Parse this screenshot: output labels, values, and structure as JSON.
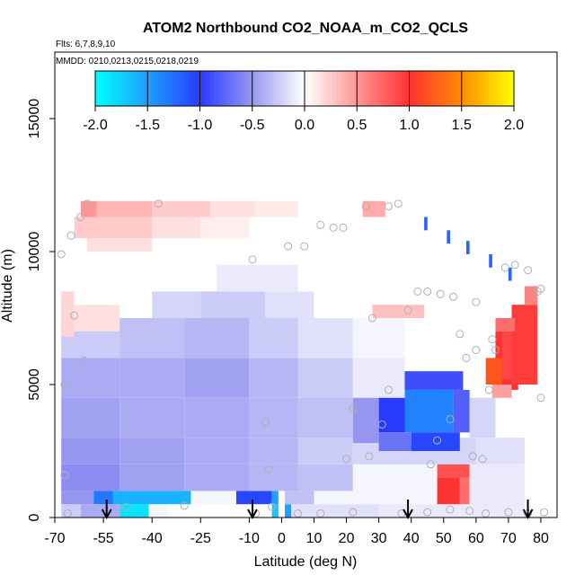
{
  "chart_data": {
    "type": "heatmap",
    "title": "ATOM2 Northbound CO2_NOAA_m_CO2_QCLS",
    "flights_label": "Flts: 6,7,8,9,10",
    "dates_label": "MMDD: 0210,0213,0215,0218,0219",
    "xlabel": "Latitude (deg N)",
    "ylabel": "Altitude (m)",
    "xlim": [
      -70,
      85
    ],
    "ylim": [
      0,
      17500
    ],
    "xticks": [
      -70,
      -55,
      -40,
      -25,
      -10,
      0,
      10,
      20,
      30,
      40,
      50,
      60,
      70,
      80
    ],
    "xtick_labels": [
      "-70",
      "-55",
      "-40",
      "-25",
      "-10",
      "0",
      "10",
      "20",
      "30",
      "40",
      "50",
      "60",
      "70",
      "80"
    ],
    "yticks": [
      0,
      5000,
      10000,
      15000
    ],
    "ytick_labels": [
      "0",
      "5000",
      "10000",
      "15000"
    ],
    "colorbar": {
      "range": [
        -2.0,
        2.0
      ],
      "ticks": [
        -2.0,
        -1.5,
        -1.0,
        -0.5,
        0.0,
        0.5,
        1.0,
        1.5,
        2.0
      ],
      "tick_labels": [
        "-2.0",
        "-1.5",
        "-1.0",
        "-0.5",
        "0.0",
        "0.5",
        "1.0",
        "1.5",
        "2.0"
      ]
    },
    "cells": [
      {
        "lat0": -68,
        "lat1": -62,
        "alt0": 0,
        "alt1": 500,
        "v": -0.25
      },
      {
        "lat0": -62,
        "lat1": -50,
        "alt0": 0,
        "alt1": 500,
        "v": -0.4
      },
      {
        "lat0": -50,
        "lat1": -41,
        "alt0": 0,
        "alt1": 500,
        "v": -1.85
      },
      {
        "lat0": -41,
        "lat1": -35,
        "alt0": 0,
        "alt1": 500,
        "v": -0.05
      },
      {
        "lat0": -35,
        "lat1": -3,
        "alt0": 0,
        "alt1": 500,
        "v": 0.0
      },
      {
        "lat0": -3,
        "lat1": -1,
        "alt0": 0,
        "alt1": 500,
        "v": -1.7
      },
      {
        "lat0": 1,
        "lat1": 3,
        "alt0": 0,
        "alt1": 500,
        "v": -1.5
      },
      {
        "lat0": 3,
        "lat1": 30,
        "alt0": 0,
        "alt1": 500,
        "v": -0.15
      },
      {
        "lat0": 30,
        "lat1": 75,
        "alt0": 0,
        "alt1": 500,
        "v": -0.1
      },
      {
        "lat0": -68,
        "lat1": -58,
        "alt0": 500,
        "alt1": 1000,
        "v": -0.5
      },
      {
        "lat0": -58,
        "lat1": -52,
        "alt0": 500,
        "alt1": 1000,
        "v": -1.3
      },
      {
        "lat0": -52,
        "lat1": -28,
        "alt0": 500,
        "alt1": 1000,
        "v": -1.6
      },
      {
        "lat0": -28,
        "lat1": -14,
        "alt0": 500,
        "alt1": 1000,
        "v": -0.05
      },
      {
        "lat0": -14,
        "lat1": -3,
        "alt0": 500,
        "alt1": 1000,
        "v": -1.05
      },
      {
        "lat0": -3,
        "lat1": -1,
        "alt0": 500,
        "alt1": 1000,
        "v": -1.5
      },
      {
        "lat0": 1,
        "lat1": 10,
        "alt0": 500,
        "alt1": 1000,
        "v": -0.3
      },
      {
        "lat0": 10,
        "lat1": 48,
        "alt0": 500,
        "alt1": 1000,
        "v": -0.05
      },
      {
        "lat0": 48,
        "lat1": 55,
        "alt0": 500,
        "alt1": 1500,
        "v": 1.0
      },
      {
        "lat0": 55,
        "lat1": 58,
        "alt0": 500,
        "alt1": 1500,
        "v": 0.7
      },
      {
        "lat0": 48,
        "lat1": 58,
        "alt0": 1500,
        "alt1": 2000,
        "v": 0.85
      },
      {
        "lat0": 58,
        "lat1": 75,
        "alt0": 500,
        "alt1": 2000,
        "v": -0.1
      },
      {
        "lat0": -68,
        "lat1": -50,
        "alt0": 1000,
        "alt1": 2000,
        "v": -0.55
      },
      {
        "lat0": -50,
        "lat1": -30,
        "alt0": 1000,
        "alt1": 2000,
        "v": -0.45
      },
      {
        "lat0": -30,
        "lat1": -10,
        "alt0": 1000,
        "alt1": 2000,
        "v": -0.4
      },
      {
        "lat0": -10,
        "lat1": 5,
        "alt0": 1000,
        "alt1": 2000,
        "v": -0.35
      },
      {
        "lat0": 5,
        "lat1": 22,
        "alt0": 1000,
        "alt1": 2000,
        "v": -0.3
      },
      {
        "lat0": 22,
        "lat1": 48,
        "alt0": 1000,
        "alt1": 2000,
        "v": -0.05
      },
      {
        "lat0": -68,
        "lat1": -50,
        "alt0": 2000,
        "alt1": 3000,
        "v": -0.5
      },
      {
        "lat0": -50,
        "lat1": -30,
        "alt0": 2000,
        "alt1": 3000,
        "v": -0.45
      },
      {
        "lat0": -30,
        "lat1": -10,
        "alt0": 2000,
        "alt1": 3000,
        "v": -0.4
      },
      {
        "lat0": -10,
        "lat1": 5,
        "alt0": 2000,
        "alt1": 3000,
        "v": -0.35
      },
      {
        "lat0": 5,
        "lat1": 22,
        "alt0": 2000,
        "alt1": 3000,
        "v": -0.25
      },
      {
        "lat0": 22,
        "lat1": 60,
        "alt0": 2000,
        "alt1": 3000,
        "v": -0.2
      },
      {
        "lat0": 60,
        "lat1": 75,
        "alt0": 2000,
        "alt1": 3000,
        "v": -0.15
      },
      {
        "lat0": -68,
        "lat1": -50,
        "alt0": 3000,
        "alt1": 4500,
        "v": -0.45
      },
      {
        "lat0": -50,
        "lat1": -30,
        "alt0": 3000,
        "alt1": 4500,
        "v": -0.4
      },
      {
        "lat0": -30,
        "lat1": -10,
        "alt0": 3000,
        "alt1": 4500,
        "v": -0.4
      },
      {
        "lat0": -10,
        "lat1": 5,
        "alt0": 3000,
        "alt1": 4500,
        "v": -0.35
      },
      {
        "lat0": 5,
        "lat1": 22,
        "alt0": 3000,
        "alt1": 4500,
        "v": -0.3
      },
      {
        "lat0": 22,
        "lat1": 30,
        "alt0": 2800,
        "alt1": 4800,
        "v": -0.5
      },
      {
        "lat0": 30,
        "lat1": 38,
        "alt0": 3200,
        "alt1": 4800,
        "v": -1.0
      },
      {
        "lat0": 38,
        "lat1": 53,
        "alt0": 3200,
        "alt1": 4800,
        "v": -1.35
      },
      {
        "lat0": 53,
        "lat1": 58,
        "alt0": 3200,
        "alt1": 4800,
        "v": -0.8
      },
      {
        "lat0": 30,
        "lat1": 40,
        "alt0": 2500,
        "alt1": 3200,
        "v": -0.7
      },
      {
        "lat0": 40,
        "lat1": 55,
        "alt0": 2500,
        "alt1": 3200,
        "v": -1.05
      },
      {
        "lat0": 38,
        "lat1": 56,
        "alt0": 4800,
        "alt1": 5500,
        "v": -0.9
      },
      {
        "lat0": 58,
        "lat1": 66,
        "alt0": 3000,
        "alt1": 4500,
        "v": -0.2
      },
      {
        "lat0": -68,
        "lat1": -50,
        "alt0": 4500,
        "alt1": 6000,
        "v": -0.4
      },
      {
        "lat0": -50,
        "lat1": -30,
        "alt0": 4500,
        "alt1": 6000,
        "v": -0.4
      },
      {
        "lat0": -30,
        "lat1": -10,
        "alt0": 4500,
        "alt1": 6000,
        "v": -0.45
      },
      {
        "lat0": -10,
        "lat1": 5,
        "alt0": 4500,
        "alt1": 6000,
        "v": -0.35
      },
      {
        "lat0": 5,
        "lat1": 22,
        "alt0": 4500,
        "alt1": 6000,
        "v": -0.25
      },
      {
        "lat0": 22,
        "lat1": 38,
        "alt0": 4500,
        "alt1": 6000,
        "v": -0.1
      },
      {
        "lat0": -68,
        "lat1": -50,
        "alt0": 6000,
        "alt1": 7500,
        "v": -0.25
      },
      {
        "lat0": -50,
        "lat1": -30,
        "alt0": 6000,
        "alt1": 7500,
        "v": -0.3
      },
      {
        "lat0": -30,
        "lat1": -10,
        "alt0": 6000,
        "alt1": 7500,
        "v": -0.35
      },
      {
        "lat0": -10,
        "lat1": 5,
        "alt0": 6000,
        "alt1": 7500,
        "v": -0.25
      },
      {
        "lat0": 5,
        "lat1": 22,
        "alt0": 6000,
        "alt1": 7500,
        "v": -0.15
      },
      {
        "lat0": 22,
        "lat1": 38,
        "alt0": 6000,
        "alt1": 7500,
        "v": -0.05
      },
      {
        "lat0": -40,
        "lat1": -25,
        "alt0": 7500,
        "alt1": 8500,
        "v": -0.2
      },
      {
        "lat0": -25,
        "lat1": -5,
        "alt0": 7500,
        "alt1": 8500,
        "v": -0.25
      },
      {
        "lat0": -5,
        "lat1": 10,
        "alt0": 7500,
        "alt1": 8500,
        "v": -0.15
      },
      {
        "lat0": -20,
        "lat1": 5,
        "alt0": 8500,
        "alt1": 9500,
        "v": -0.1
      },
      {
        "lat0": -68,
        "lat1": -50,
        "alt0": 7000,
        "alt1": 8000,
        "v": 0.15
      },
      {
        "lat0": -68,
        "lat1": -64,
        "alt0": 6800,
        "alt1": 8500,
        "v": 0.2
      },
      {
        "lat0": 28,
        "lat1": 44,
        "alt0": 7500,
        "alt1": 8000,
        "v": 0.3
      },
      {
        "lat0": -62,
        "lat1": -57,
        "alt0": 11300,
        "alt1": 11900,
        "v": 0.5
      },
      {
        "lat0": -57,
        "lat1": -40,
        "alt0": 11300,
        "alt1": 11900,
        "v": 0.35
      },
      {
        "lat0": -40,
        "lat1": -22,
        "alt0": 11300,
        "alt1": 11900,
        "v": 0.25
      },
      {
        "lat0": -22,
        "lat1": -8,
        "alt0": 11300,
        "alt1": 11900,
        "v": 0.15
      },
      {
        "lat0": -8,
        "lat1": 5,
        "alt0": 11300,
        "alt1": 11900,
        "v": 0.1
      },
      {
        "lat0": -64,
        "lat1": -40,
        "alt0": 10500,
        "alt1": 11300,
        "v": 0.25
      },
      {
        "lat0": -40,
        "lat1": -25,
        "alt0": 10500,
        "alt1": 11300,
        "v": 0.15
      },
      {
        "lat0": -25,
        "lat1": -10,
        "alt0": 10500,
        "alt1": 11300,
        "v": 0.08
      },
      {
        "lat0": -60,
        "lat1": -40,
        "alt0": 10000,
        "alt1": 10500,
        "v": 0.15
      },
      {
        "lat0": 25,
        "lat1": 32,
        "alt0": 11300,
        "alt1": 11900,
        "v": 0.4
      },
      {
        "lat0": 66,
        "lat1": 73,
        "alt0": 4800,
        "alt1": 7000,
        "v": 1.0
      },
      {
        "lat0": 68,
        "lat1": 76,
        "alt0": 5200,
        "alt1": 7000,
        "v": 0.9
      },
      {
        "lat0": 71,
        "lat1": 79,
        "alt0": 5000,
        "alt1": 8000,
        "v": 0.95
      },
      {
        "lat0": 75,
        "lat1": 79,
        "alt0": 8000,
        "alt1": 8700,
        "v": 0.6
      },
      {
        "lat0": 66,
        "lat1": 72,
        "alt0": 7000,
        "alt1": 7500,
        "v": 0.7
      },
      {
        "lat0": 63,
        "lat1": 68,
        "alt0": 5000,
        "alt1": 6000,
        "v": 1.2
      },
      {
        "lat0": 65,
        "lat1": 71,
        "alt0": 4500,
        "alt1": 5000,
        "v": 0.45
      },
      {
        "lat0": 44,
        "lat1": 45,
        "alt0": 10800,
        "alt1": 11300,
        "v": -1.2
      },
      {
        "lat0": 51,
        "lat1": 52,
        "alt0": 10300,
        "alt1": 10800,
        "v": -1.2
      },
      {
        "lat0": 57,
        "lat1": 58,
        "alt0": 9900,
        "alt1": 10400,
        "v": -1.2
      },
      {
        "lat0": 64,
        "lat1": 65,
        "alt0": 9400,
        "alt1": 9900,
        "v": -1.2
      },
      {
        "lat0": 70,
        "lat1": 71,
        "alt0": 8900,
        "alt1": 9400,
        "v": -1.2
      }
    ],
    "points": [
      {
        "lat": -68,
        "alt": 9900
      },
      {
        "lat": -67,
        "alt": 5000
      },
      {
        "lat": -67,
        "alt": 1600
      },
      {
        "lat": -66,
        "alt": 150
      },
      {
        "lat": -65,
        "alt": 10600
      },
      {
        "lat": -64,
        "alt": 7600
      },
      {
        "lat": -62,
        "alt": 11300
      },
      {
        "lat": -61,
        "alt": 5900
      },
      {
        "lat": -60,
        "alt": 11800
      },
      {
        "lat": -38,
        "alt": 11800
      },
      {
        "lat": -9,
        "alt": 9700
      },
      {
        "lat": -5,
        "alt": 3600
      },
      {
        "lat": -4,
        "alt": 1800
      },
      {
        "lat": 2,
        "alt": 10200
      },
      {
        "lat": 7,
        "alt": 10200
      },
      {
        "lat": 12,
        "alt": 11000
      },
      {
        "lat": 16,
        "alt": 10900
      },
      {
        "lat": 19,
        "alt": 10900
      },
      {
        "lat": 22,
        "alt": 4100
      },
      {
        "lat": 20,
        "alt": 2200
      },
      {
        "lat": 26,
        "alt": 11700
      },
      {
        "lat": 27,
        "alt": 2300
      },
      {
        "lat": 28,
        "alt": 7500
      },
      {
        "lat": 31,
        "alt": 3500
      },
      {
        "lat": 33,
        "alt": 11700
      },
      {
        "lat": 36,
        "alt": 11800
      },
      {
        "lat": 33,
        "alt": 4800
      },
      {
        "lat": 39,
        "alt": 7800
      },
      {
        "lat": 42,
        "alt": 8500
      },
      {
        "lat": 45,
        "alt": 8500
      },
      {
        "lat": 49,
        "alt": 8400
      },
      {
        "lat": 53,
        "alt": 8300
      },
      {
        "lat": 60,
        "alt": 8100
      },
      {
        "lat": 55,
        "alt": 6900
      },
      {
        "lat": 57,
        "alt": 6000
      },
      {
        "lat": 60,
        "alt": 6300
      },
      {
        "lat": 48,
        "alt": 2900
      },
      {
        "lat": 52,
        "alt": 3700
      },
      {
        "lat": 46,
        "alt": 2000
      },
      {
        "lat": 59,
        "alt": 2300
      },
      {
        "lat": 62,
        "alt": 2200
      },
      {
        "lat": 64,
        "alt": 4800
      },
      {
        "lat": 65,
        "alt": 6700
      },
      {
        "lat": 66,
        "alt": 6300
      },
      {
        "lat": 69,
        "alt": 9400
      },
      {
        "lat": 72,
        "alt": 9500
      },
      {
        "lat": 76,
        "alt": 9300
      },
      {
        "lat": 79,
        "alt": 8500
      },
      {
        "lat": 80,
        "alt": 8600
      },
      {
        "lat": 80,
        "alt": 4500
      },
      {
        "lat": -48,
        "alt": 400
      },
      {
        "lat": -30,
        "alt": 450
      },
      {
        "lat": -8,
        "alt": 150
      },
      {
        "lat": -3,
        "alt": 400
      },
      {
        "lat": 5,
        "alt": 150
      },
      {
        "lat": 12,
        "alt": 150
      },
      {
        "lat": 22,
        "alt": 200
      },
      {
        "lat": 37,
        "alt": 150
      },
      {
        "lat": 45,
        "alt": 200
      },
      {
        "lat": 52,
        "alt": 300
      },
      {
        "lat": 58,
        "alt": 250
      },
      {
        "lat": 63,
        "alt": 150
      },
      {
        "lat": 70,
        "alt": 200
      },
      {
        "lat": 76,
        "alt": 150
      },
      {
        "lat": 81,
        "alt": 200
      }
    ],
    "arrows": [
      -54,
      -9,
      39,
      76
    ]
  }
}
